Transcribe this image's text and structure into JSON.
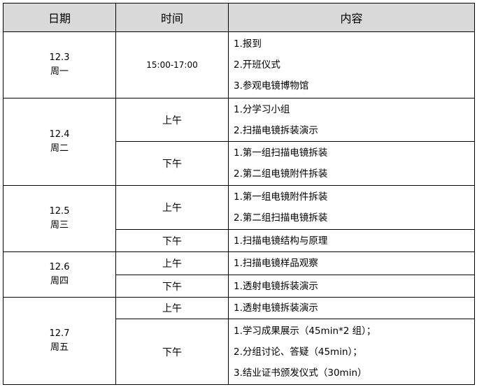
{
  "header": {
    "date": "日期",
    "time": "时间",
    "content": "内容"
  },
  "days": [
    {
      "date": "12.3",
      "weekday": "周一",
      "sessions": [
        {
          "time": "15:00-17:00",
          "items": [
            "1.报到",
            "2.开班仪式",
            "3.参观电镜博物馆"
          ]
        }
      ]
    },
    {
      "date": "12.4",
      "weekday": "周二",
      "sessions": [
        {
          "time": "上午",
          "items": [
            "1.分学习小组",
            "2.扫描电镜拆装演示"
          ]
        },
        {
          "time": "下午",
          "items": [
            "1.第一组扫描电镜拆装",
            "2.第二组电镜附件拆装"
          ]
        }
      ]
    },
    {
      "date": "12.5",
      "weekday": "周三",
      "sessions": [
        {
          "time": "上午",
          "items": [
            "1.第一组电镜附件拆装",
            "2.第二组扫描电镜拆装"
          ]
        },
        {
          "time": "下午",
          "items": [
            "1.扫描电镜结构与原理"
          ]
        }
      ]
    },
    {
      "date": "12.6",
      "weekday": "周四",
      "sessions": [
        {
          "time": "上午",
          "items": [
            "1.扫描电镜样品观察"
          ]
        },
        {
          "time": "下午",
          "items": [
            "1.透射电镜拆装演示"
          ]
        }
      ]
    },
    {
      "date": "12.7",
      "weekday": "周五",
      "sessions": [
        {
          "time": "上午",
          "items": [
            "1.透射电镜拆装演示"
          ]
        },
        {
          "time": "下午",
          "items": [
            "1.学习成果展示（45min*2 组）；",
            "2.分组讨论、答疑（45min）；",
            "3.结业证书颁发仪式（30min）"
          ]
        }
      ]
    }
  ]
}
